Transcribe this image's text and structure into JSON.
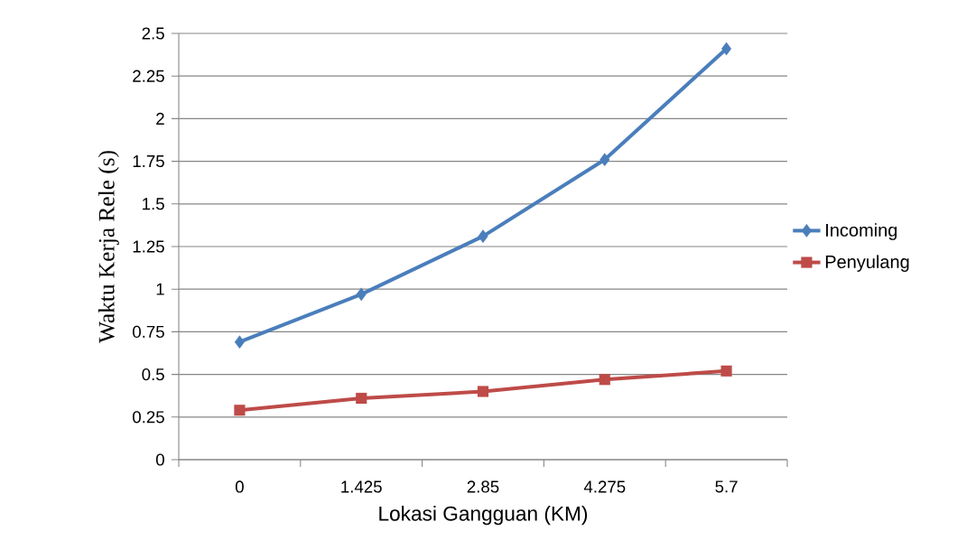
{
  "chart_data": {
    "type": "line",
    "xlabel": "Lokasi Gangguan (KM)",
    "ylabel": "Waktu Kerja Rele (s)",
    "categories": [
      "0",
      "1.425",
      "2.85",
      "4.275",
      "5.7"
    ],
    "series": [
      {
        "name": "Incoming",
        "color": "#4a7ebb",
        "marker": "diamond",
        "values": [
          0.69,
          0.97,
          1.31,
          1.76,
          2.41
        ]
      },
      {
        "name": "Penyulang",
        "color": "#be4b48",
        "marker": "square",
        "values": [
          0.29,
          0.36,
          0.4,
          0.47,
          0.52
        ]
      }
    ],
    "ylim": [
      0,
      2.5
    ],
    "yticks": [
      0,
      0.25,
      0.5,
      0.75,
      1,
      1.25,
      1.5,
      1.75,
      2,
      2.25,
      2.5
    ],
    "grid": "y",
    "legend": "right",
    "line_style": "solid"
  }
}
